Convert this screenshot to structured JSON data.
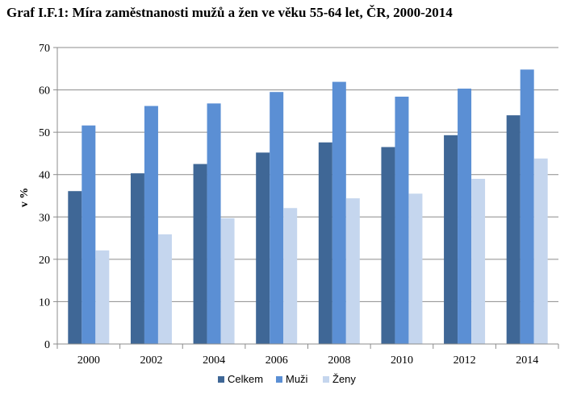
{
  "chart_data": {
    "type": "bar",
    "title": "Graf I.F.1: Míra zaměstnanosti mužů a žen ve věku 55-64 let, ČR, 2000-2014",
    "ylabel": "v %",
    "xlabel": "",
    "ylim": [
      0,
      70
    ],
    "yticks": [
      0,
      10,
      20,
      30,
      40,
      50,
      60,
      70
    ],
    "grid": true,
    "legend_position": "bottom",
    "categories": [
      "2000",
      "2002",
      "2004",
      "2006",
      "2008",
      "2010",
      "2012",
      "2014"
    ],
    "series": [
      {
        "name": "Celkem",
        "color": "#3f6796",
        "values": [
          36.1,
          40.3,
          42.5,
          45.2,
          47.6,
          46.5,
          49.3,
          54.0
        ]
      },
      {
        "name": "Muži",
        "color": "#5b8fd4",
        "values": [
          51.6,
          56.2,
          56.8,
          59.5,
          61.9,
          58.4,
          60.3,
          64.8
        ]
      },
      {
        "name": "Ženy",
        "color": "#c5d6ee",
        "values": [
          22.1,
          25.9,
          29.7,
          32.1,
          34.4,
          35.5,
          39.0,
          43.8
        ]
      }
    ]
  }
}
